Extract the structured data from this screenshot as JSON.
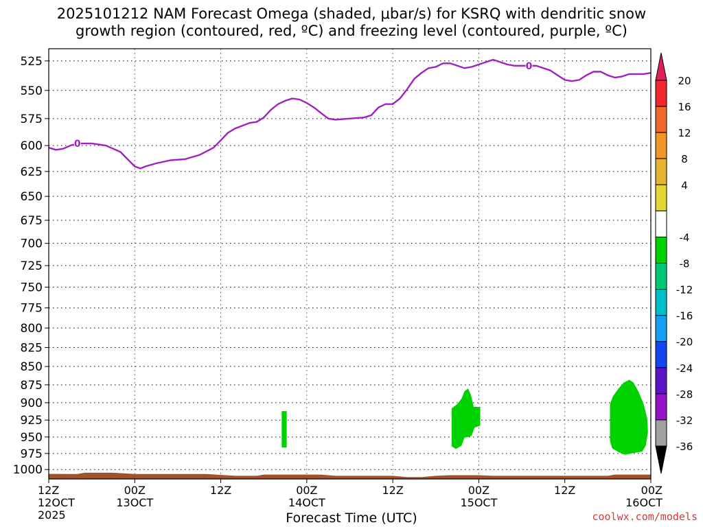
{
  "title": "2025101212 NAM Forecast Omega (shaded, μbar/s) for KSRQ with dendritic snow\ngrowth region (contoured, red, ºC) and freezing level (contoured, purple, ºC)",
  "credit": "coolwx.com/models",
  "chart_data": {
    "type": "heatmap",
    "title": "2025101212 NAM Forecast Omega (shaded, μbar/s) for KSRQ with dendritic snow growth region (contoured, red, ºC) and freezing level (contoured, purple, ºC)",
    "xlabel": "Forecast Time (UTC)",
    "ylabel": "",
    "x_ticks": [
      {
        "hour": 0,
        "top": "12Z",
        "bottom": "12OCT",
        "extra": "2025"
      },
      {
        "hour": 12,
        "top": "00Z",
        "bottom": "13OCT",
        "extra": ""
      },
      {
        "hour": 24,
        "top": "12Z",
        "bottom": "",
        "extra": ""
      },
      {
        "hour": 36,
        "top": "00Z",
        "bottom": "14OCT",
        "extra": ""
      },
      {
        "hour": 48,
        "top": "12Z",
        "bottom": "",
        "extra": ""
      },
      {
        "hour": 60,
        "top": "00Z",
        "bottom": "15OCT",
        "extra": ""
      },
      {
        "hour": 72,
        "top": "12Z",
        "bottom": "",
        "extra": ""
      },
      {
        "hour": 84,
        "top": "00Z",
        "bottom": "16OCT",
        "extra": ""
      }
    ],
    "xlim": [
      0,
      84
    ],
    "y_ticks": [
      525,
      550,
      575,
      600,
      625,
      650,
      675,
      700,
      725,
      750,
      775,
      800,
      825,
      850,
      875,
      900,
      925,
      950,
      975,
      1000
    ],
    "ylim": [
      1015,
      515
    ],
    "y_scale": "log-pressure (hPa), inverted",
    "grid": true,
    "freezing_level": {
      "color": "#a020c0",
      "label": "0",
      "points": [
        [
          0,
          602
        ],
        [
          1,
          604
        ],
        [
          2,
          603
        ],
        [
          3,
          600
        ],
        [
          4,
          598
        ],
        [
          6,
          598
        ],
        [
          8,
          600
        ],
        [
          9,
          603
        ],
        [
          10,
          606
        ],
        [
          11,
          613
        ],
        [
          12,
          620
        ],
        [
          12.8,
          622
        ],
        [
          13.5,
          620
        ],
        [
          15,
          617
        ],
        [
          17,
          614
        ],
        [
          19,
          613
        ],
        [
          21,
          609
        ],
        [
          23,
          602
        ],
        [
          24,
          595
        ],
        [
          25,
          588
        ],
        [
          26,
          584
        ],
        [
          28,
          579
        ],
        [
          29,
          578
        ],
        [
          30,
          574
        ],
        [
          31,
          567
        ],
        [
          32,
          562
        ],
        [
          33,
          559
        ],
        [
          34,
          557
        ],
        [
          35,
          558
        ],
        [
          36,
          561
        ],
        [
          37,
          565
        ],
        [
          38,
          570
        ],
        [
          39,
          575
        ],
        [
          40,
          576
        ],
        [
          42,
          575
        ],
        [
          44,
          574
        ],
        [
          45,
          572
        ],
        [
          46,
          565
        ],
        [
          47,
          562
        ],
        [
          48,
          562
        ],
        [
          49,
          557
        ],
        [
          50,
          549
        ],
        [
          51,
          540
        ],
        [
          52,
          535
        ],
        [
          53,
          531
        ],
        [
          54,
          530
        ],
        [
          55,
          527
        ],
        [
          56,
          527
        ],
        [
          57,
          529
        ],
        [
          58,
          531
        ],
        [
          59,
          530
        ],
        [
          60,
          528
        ],
        [
          61,
          526
        ],
        [
          62,
          524
        ],
        [
          63,
          526
        ],
        [
          64,
          528
        ],
        [
          65,
          529
        ],
        [
          66,
          529
        ],
        [
          67,
          529
        ],
        [
          68,
          529
        ],
        [
          69,
          531
        ],
        [
          70,
          533
        ],
        [
          71,
          537
        ],
        [
          72,
          541
        ],
        [
          73,
          542
        ],
        [
          74,
          541
        ],
        [
          75,
          537
        ],
        [
          76,
          534
        ],
        [
          77,
          534
        ],
        [
          78,
          537
        ],
        [
          79,
          539
        ],
        [
          80,
          538
        ],
        [
          81,
          536
        ],
        [
          82,
          536
        ],
        [
          83,
          536
        ],
        [
          84,
          535
        ]
      ],
      "label_positions": [
        [
          4,
          598
        ],
        [
          67,
          529
        ]
      ]
    },
    "omega_regions": [
      {
        "color": "#00d200",
        "range": "-8 to -4",
        "polygon": [
          [
            32.5,
            912
          ],
          [
            33.2,
            912
          ],
          [
            33.2,
            966
          ],
          [
            32.5,
            966
          ]
        ]
      },
      {
        "color": "#00d200",
        "range": "-8 to -4",
        "polygon": [
          [
            56.2,
            908
          ],
          [
            57.0,
            902
          ],
          [
            57.6,
            894
          ],
          [
            58.0,
            884
          ],
          [
            58.5,
            880
          ],
          [
            58.9,
            889
          ],
          [
            59.3,
            906
          ],
          [
            60.2,
            906
          ],
          [
            60.2,
            933
          ],
          [
            59.4,
            936
          ],
          [
            59.0,
            948
          ],
          [
            58.6,
            950
          ],
          [
            58.0,
            951
          ],
          [
            57.6,
            963
          ],
          [
            56.8,
            968
          ],
          [
            56.2,
            964
          ]
        ]
      },
      {
        "color": "#00d200",
        "range": "-8 to -4",
        "polygon": [
          [
            78.3,
            902
          ],
          [
            78.7,
            891
          ],
          [
            79.5,
            880
          ],
          [
            80.2,
            872
          ],
          [
            81.0,
            868
          ],
          [
            81.6,
            872
          ],
          [
            82.3,
            885
          ],
          [
            83.0,
            902
          ],
          [
            83.5,
            923
          ],
          [
            83.6,
            943
          ],
          [
            83.3,
            963
          ],
          [
            82.8,
            972
          ],
          [
            81.3,
            975
          ],
          [
            80.4,
            977
          ],
          [
            79.5,
            973
          ],
          [
            78.6,
            967
          ],
          [
            78.3,
            956
          ]
        ]
      }
    ],
    "ground": {
      "color": "#a0522d",
      "top_points": [
        [
          0,
          1007
        ],
        [
          4,
          1007
        ],
        [
          5,
          1005
        ],
        [
          9,
          1005
        ],
        [
          12,
          1007
        ],
        [
          22,
          1007
        ],
        [
          26,
          1010
        ],
        [
          29,
          1010
        ],
        [
          30,
          1008
        ],
        [
          38,
          1008
        ],
        [
          40,
          1010
        ],
        [
          48,
          1010
        ],
        [
          50,
          1012
        ],
        [
          52,
          1012
        ],
        [
          54,
          1010
        ],
        [
          56,
          1009
        ],
        [
          60,
          1009
        ],
        [
          62,
          1010
        ],
        [
          78,
          1010
        ],
        [
          79,
          1008
        ],
        [
          84,
          1008
        ]
      ],
      "bottom": 1015
    },
    "colorbar": {
      "labels": [
        "20",
        "16",
        "12",
        "8",
        "4",
        "-4",
        "-8",
        "-12",
        "-16",
        "-20",
        "-24",
        "-28",
        "-32",
        "-36"
      ],
      "colors": [
        "#e01e5a",
        "#f0282d",
        "#ee6a28",
        "#f09628",
        "#e3b432",
        "#e3d732",
        "#ffffff",
        "#00d200",
        "#00c878",
        "#00bec8",
        "#14a0f0",
        "#1446f0",
        "#5a14c8",
        "#9614c8",
        "#a0a0a0",
        "#000000"
      ]
    }
  }
}
